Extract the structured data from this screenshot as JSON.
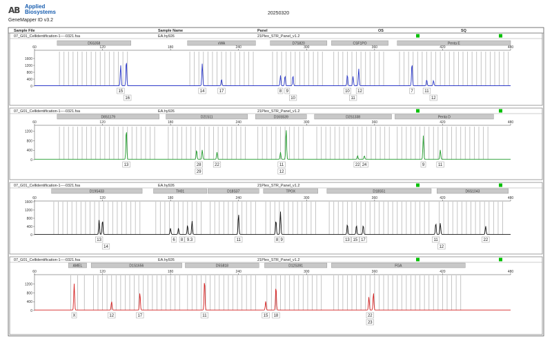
{
  "header": {
    "logo_mark": "AB",
    "logo_line1": "Applied",
    "logo_line2": "Biosystems",
    "app_version": "GeneMapper ID v3.2",
    "run_date": "20250320"
  },
  "columns": {
    "sample_file": "Sample File",
    "sample_name": "Sample Name",
    "panel": "Panel",
    "os": "OS",
    "sq": "SQ"
  },
  "colors": {
    "blue": "#2a38c8",
    "green": "#1f9a2a",
    "black": "#111111",
    "red": "#d42020",
    "flag_green": "#00c000",
    "marker_grey": "#c8c8c8",
    "bin_grey": "#bdbdbd"
  },
  "chart_data": [
    {
      "type": "line",
      "dye": "blue",
      "sample_file": "07_G01_Cellidentification-1----0321.fsa",
      "sample_name": "EA.hy926",
      "panel": "21Plex_STR_Panel_v1.2",
      "xlim": [
        60,
        480
      ],
      "x_ticks": [
        60,
        120,
        180,
        240,
        300,
        360,
        420,
        480
      ],
      "ylim": [
        0,
        2000
      ],
      "y_ticks": [
        0,
        400,
        800,
        1200,
        1600
      ],
      "markers": [
        {
          "name": "D5S358",
          "range": [
            80,
            145
          ]
        },
        {
          "name": "vWA",
          "range": [
            195,
            255
          ]
        },
        {
          "name": "D7S820",
          "range": [
            268,
            318
          ]
        },
        {
          "name": "CSF1PO",
          "range": [
            322,
            372
          ]
        },
        {
          "name": "Penta E",
          "range": [
            380,
            480
          ]
        }
      ],
      "peaks": [
        {
          "x": 136,
          "height": 1200
        },
        {
          "x": 141,
          "height": 1500
        },
        {
          "x": 208,
          "height": 1300
        },
        {
          "x": 225,
          "height": 380
        },
        {
          "x": 277,
          "height": 600
        },
        {
          "x": 281,
          "height": 600
        },
        {
          "x": 288,
          "height": 600
        },
        {
          "x": 336,
          "height": 650
        },
        {
          "x": 341,
          "height": 550
        },
        {
          "x": 346,
          "height": 1000
        },
        {
          "x": 393,
          "height": 1350
        },
        {
          "x": 406,
          "height": 350
        },
        {
          "x": 412,
          "height": 300
        }
      ],
      "allele_labels": [
        {
          "x": 136,
          "lines": [
            "15"
          ]
        },
        {
          "x": 142,
          "lines": [
            "",
            "16"
          ]
        },
        {
          "x": 208,
          "lines": [
            "14"
          ]
        },
        {
          "x": 225,
          "lines": [
            "17"
          ]
        },
        {
          "x": 277,
          "lines": [
            "8"
          ]
        },
        {
          "x": 283,
          "lines": [
            "9"
          ]
        },
        {
          "x": 288,
          "lines": [
            "",
            "10"
          ]
        },
        {
          "x": 336,
          "lines": [
            "10"
          ]
        },
        {
          "x": 341,
          "lines": [
            "",
            "11"
          ]
        },
        {
          "x": 347,
          "lines": [
            "12"
          ]
        },
        {
          "x": 393,
          "lines": [
            "7"
          ]
        },
        {
          "x": 406,
          "lines": [
            "11"
          ]
        },
        {
          "x": 412,
          "lines": [
            "",
            "12"
          ]
        }
      ]
    },
    {
      "type": "line",
      "dye": "green",
      "sample_file": "07_G01_Cellidentification-1----0321.fsa",
      "sample_name": "EA.hy926",
      "panel": "21Plex_STR_Panel_v1.2",
      "xlim": [
        60,
        480
      ],
      "x_ticks": [
        60,
        120,
        180,
        240,
        300,
        360,
        420,
        480
      ],
      "ylim": [
        0,
        1400
      ],
      "y_ticks": [
        0,
        400,
        800,
        1200
      ],
      "markers": [
        {
          "name": "D8S1179",
          "range": [
            80,
            170
          ]
        },
        {
          "name": "D21S11",
          "range": [
            176,
            248
          ]
        },
        {
          "name": "D16S539",
          "range": [
            255,
            300
          ]
        },
        {
          "name": "D2S1338",
          "range": [
            307,
            375
          ]
        },
        {
          "name": "Penta D",
          "range": [
            378,
            465
          ]
        }
      ],
      "peaks": [
        {
          "x": 141,
          "height": 1300
        },
        {
          "x": 203,
          "height": 400
        },
        {
          "x": 208,
          "height": 400
        },
        {
          "x": 221,
          "height": 300
        },
        {
          "x": 277,
          "height": 300
        },
        {
          "x": 282,
          "height": 1300
        },
        {
          "x": 345,
          "height": 150
        },
        {
          "x": 351,
          "height": 150
        },
        {
          "x": 403,
          "height": 1000
        },
        {
          "x": 418,
          "height": 400
        }
      ],
      "allele_labels": [
        {
          "x": 141,
          "lines": [
            "13"
          ]
        },
        {
          "x": 205,
          "lines": [
            "28",
            "29"
          ]
        },
        {
          "x": 221,
          "lines": [
            "22"
          ]
        },
        {
          "x": 278,
          "lines": [
            "11",
            "12"
          ]
        },
        {
          "x": 345,
          "lines": [
            "22"
          ]
        },
        {
          "x": 351,
          "lines": [
            "24"
          ]
        },
        {
          "x": 403,
          "lines": [
            "9"
          ]
        },
        {
          "x": 418,
          "lines": [
            "11"
          ]
        }
      ]
    },
    {
      "type": "line",
      "dye": "black",
      "sample_file": "07_G01_Cellidentification-1----0321.fsa",
      "sample_name": "EA.hy926",
      "panel": "21Plex_STR_Panel_v1.2",
      "xlim": [
        60,
        480
      ],
      "x_ticks": [
        60,
        120,
        180,
        240,
        300,
        360,
        420,
        480
      ],
      "ylim": [
        0,
        1600
      ],
      "y_ticks": [
        0,
        400,
        800,
        1200,
        1600
      ],
      "markers": [
        {
          "name": "D19S433",
          "range": [
            75,
            155
          ]
        },
        {
          "name": "TH01",
          "range": [
            165,
            212
          ]
        },
        {
          "name": "D18S37",
          "range": [
            213,
            258
          ]
        },
        {
          "name": "TPOX",
          "range": [
            262,
            310
          ]
        },
        {
          "name": "D18S51",
          "range": [
            318,
            410
          ]
        },
        {
          "name": "D6S1043",
          "range": [
            415,
            478
          ]
        }
      ],
      "peaks": [
        {
          "x": 117,
          "height": 700
        },
        {
          "x": 120,
          "height": 700
        },
        {
          "x": 180,
          "height": 300
        },
        {
          "x": 187,
          "height": 300
        },
        {
          "x": 195,
          "height": 450
        },
        {
          "x": 199,
          "height": 650
        },
        {
          "x": 240,
          "height": 1000
        },
        {
          "x": 273,
          "height": 700
        },
        {
          "x": 277,
          "height": 1100
        },
        {
          "x": 336,
          "height": 500
        },
        {
          "x": 344,
          "height": 450
        },
        {
          "x": 350,
          "height": 450
        },
        {
          "x": 414,
          "height": 550
        },
        {
          "x": 418,
          "height": 550
        },
        {
          "x": 458,
          "height": 400
        }
      ],
      "allele_labels": [
        {
          "x": 117,
          "lines": [
            "13"
          ]
        },
        {
          "x": 123,
          "lines": [
            "",
            "14"
          ]
        },
        {
          "x": 183,
          "lines": [
            "6"
          ]
        },
        {
          "x": 190,
          "lines": [
            "8"
          ]
        },
        {
          "x": 197,
          "lines": [
            "9.3"
          ]
        },
        {
          "x": 240,
          "lines": [
            "11"
          ]
        },
        {
          "x": 274,
          "lines": [
            "8"
          ]
        },
        {
          "x": 278,
          "lines": [
            "9"
          ]
        },
        {
          "x": 336,
          "lines": [
            "13"
          ]
        },
        {
          "x": 343,
          "lines": [
            "15"
          ]
        },
        {
          "x": 350,
          "lines": [
            "17"
          ]
        },
        {
          "x": 414,
          "lines": [
            "11"
          ]
        },
        {
          "x": 419,
          "lines": [
            "",
            "12"
          ]
        },
        {
          "x": 458,
          "lines": [
            "22"
          ]
        }
      ]
    },
    {
      "type": "line",
      "dye": "red",
      "sample_file": "07_G01_Cellidentification-1----0321.fsa",
      "sample_name": "EA.hy926",
      "panel": "21Plex_STR_Panel_v1.2",
      "xlim": [
        60,
        480
      ],
      "x_ticks": [
        60,
        120,
        180,
        240,
        300,
        360,
        420,
        480
      ],
      "ylim": [
        0,
        1600
      ],
      "y_ticks": [
        0,
        400,
        800,
        1200
      ],
      "markers": [
        {
          "name": "AMEL",
          "range": [
            90,
            106
          ]
        },
        {
          "name": "D1S1656",
          "range": [
            110,
            190
          ]
        },
        {
          "name": "D5S818",
          "range": [
            193,
            258
          ]
        },
        {
          "name": "D12S391",
          "range": [
            263,
            318
          ]
        },
        {
          "name": "FGA",
          "range": [
            322,
            440
          ]
        }
      ],
      "peaks": [
        {
          "x": 95,
          "height": 1200
        },
        {
          "x": 128,
          "height": 400
        },
        {
          "x": 153,
          "height": 800
        },
        {
          "x": 210,
          "height": 1400
        },
        {
          "x": 264,
          "height": 400
        },
        {
          "x": 273,
          "height": 1100
        },
        {
          "x": 355,
          "height": 600
        },
        {
          "x": 359,
          "height": 800
        }
      ],
      "allele_labels": [
        {
          "x": 95,
          "lines": [
            "X"
          ]
        },
        {
          "x": 128,
          "lines": [
            "12"
          ]
        },
        {
          "x": 153,
          "lines": [
            "17"
          ]
        },
        {
          "x": 210,
          "lines": [
            "11"
          ]
        },
        {
          "x": 264,
          "lines": [
            "15"
          ]
        },
        {
          "x": 273,
          "lines": [
            "18"
          ]
        },
        {
          "x": 356,
          "lines": [
            "22",
            "23"
          ]
        }
      ]
    }
  ]
}
